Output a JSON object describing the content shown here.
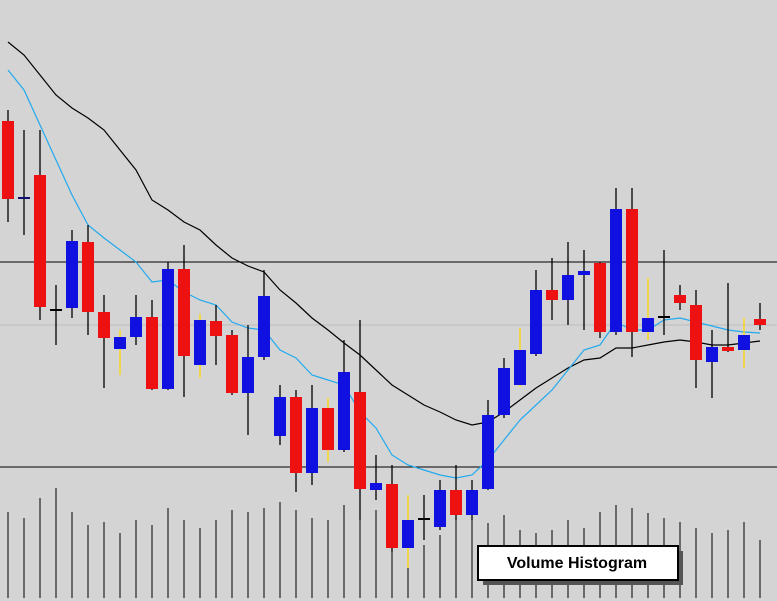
{
  "chart_data": [
    {
      "type": "candlestick",
      "ylim": [
        0,
        601
      ],
      "open": [
        480,
        403,
        426,
        292,
        293,
        359,
        289,
        252,
        264,
        284,
        212,
        332,
        236,
        280,
        266,
        208,
        244,
        165,
        204,
        128,
        193,
        151,
        209,
        111,
        117,
        53,
        83,
        74,
        111,
        86,
        112,
        186,
        216,
        247,
        311,
        301,
        326,
        338,
        269,
        392,
        269,
        285,
        306,
        296,
        239,
        254,
        251,
        282
      ],
      "high": [
        491,
        471,
        471,
        316,
        371,
        376,
        306,
        271,
        306,
        301,
        339,
        356,
        287,
        296,
        271,
        276,
        331,
        216,
        211,
        216,
        203,
        261,
        281,
        146,
        136,
        106,
        106,
        121,
        136,
        121,
        201,
        243,
        273,
        331,
        343,
        359,
        351,
        339,
        413,
        413,
        323,
        351,
        316,
        311,
        271,
        318,
        283,
        298
      ],
      "low": [
        379,
        366,
        281,
        256,
        283,
        266,
        213,
        226,
        256,
        211,
        211,
        204,
        223,
        236,
        206,
        166,
        241,
        156,
        109,
        116,
        139,
        149,
        81,
        101,
        49,
        33,
        61,
        71,
        81,
        81,
        111,
        183,
        214,
        245,
        281,
        276,
        271,
        263,
        266,
        244,
        261,
        266,
        291,
        213,
        203,
        249,
        233,
        271
      ],
      "close": [
        402,
        404,
        294,
        292,
        360,
        289,
        263,
        264,
        284,
        212,
        332,
        245,
        281,
        265,
        208,
        244,
        305,
        204,
        128,
        193,
        151,
        229,
        112,
        118,
        53,
        81,
        83,
        111,
        86,
        111,
        186,
        233,
        251,
        311,
        301,
        326,
        330,
        269,
        392,
        269,
        283,
        285,
        298,
        241,
        254,
        250,
        266,
        276
      ],
      "colors": [
        "#ee1111",
        "#10106e",
        "#ee1111",
        "#000000",
        "#1010e0",
        "#ee1111",
        "#ee1111",
        "#1010e0",
        "#1010e0",
        "#ee1111",
        "#1010e0",
        "#ee1111",
        "#1010e0",
        "#ee1111",
        "#ee1111",
        "#1010e0",
        "#1010e0",
        "#1010e0",
        "#ee1111",
        "#1010e0",
        "#ee1111",
        "#1010e0",
        "#ee1111",
        "#1010e0",
        "#ee1111",
        "#1010e0",
        "#000000",
        "#1010e0",
        "#ee1111",
        "#1010e0",
        "#1010e0",
        "#1010e0",
        "#1010e0",
        "#1010e0",
        "#ee1111",
        "#1010e0",
        "#1010e0",
        "#ee1111",
        "#1010e0",
        "#ee1111",
        "#1010e0",
        "#000000",
        "#ee1111",
        "#ee1111",
        "#1010e0",
        "#ee1111",
        "#1010e0",
        "#ee1111"
      ],
      "wick_colors": [
        "#000000",
        "#000000",
        "#000000",
        "#000000",
        "#000000",
        "#000000",
        "#000000",
        "#ffd700",
        "#000000",
        "#000000",
        "#000000",
        "#000000",
        "#ffd700",
        "#000000",
        "#000000",
        "#000000",
        "#000000",
        "#000000",
        "#000000",
        "#000000",
        "#ffd700",
        "#000000",
        "#000000",
        "#000000",
        "#000000",
        "#ffd700",
        "#000000",
        "#000000",
        "#000000",
        "#000000",
        "#000000",
        "#000000",
        "#ffd700",
        "#000000",
        "#000000",
        "#000000",
        "#000000",
        "#000000",
        "#000000",
        "#000000",
        "#ffd700",
        "#000000",
        "#000000",
        "#000000",
        "#000000",
        "#000000",
        "#ffd700",
        "#000000"
      ],
      "series": [
        {
          "color": "#000000",
          "values": [
            559,
            546,
            526,
            506,
            493,
            483,
            471,
            451,
            431,
            401,
            391,
            379,
            371,
            356,
            343,
            335,
            329,
            311,
            298,
            283,
            271,
            258,
            246,
            231,
            216,
            206,
            196,
            189,
            181,
            176,
            179,
            189,
            201,
            213,
            223,
            233,
            241,
            243,
            253,
            253,
            256,
            259,
            261,
            259,
            256,
            256,
            258,
            260
          ]
        },
        {
          "color": "#22aaee",
          "values": [
            531,
            511,
            476,
            441,
            406,
            376,
            363,
            351,
            339,
            319,
            321,
            309,
            301,
            296,
            279,
            273,
            271,
            251,
            243,
            226,
            221,
            216,
            189,
            173,
            146,
            136,
            131,
            126,
            123,
            126,
            141,
            161,
            181,
            196,
            211,
            231,
            251,
            256,
            279,
            271,
            271,
            281,
            283,
            279,
            275,
            271,
            269,
            268
          ]
        }
      ],
      "hlines": [
        {
          "value": 339,
          "color": "#000000"
        },
        {
          "value": 276,
          "color": "#bbbbbb"
        },
        {
          "value": 134,
          "color": "#000000"
        }
      ]
    },
    {
      "type": "volume",
      "title": "Volume Histogram",
      "ylim": [
        0,
        598
      ],
      "color": "#000000",
      "values": [
        86,
        80,
        100,
        110,
        86,
        73,
        76,
        65,
        78,
        73,
        90,
        78,
        70,
        78,
        88,
        86,
        90,
        96,
        88,
        80,
        78,
        93,
        105,
        88,
        70,
        58,
        53,
        63,
        83,
        78,
        75,
        83,
        68,
        65,
        68,
        78,
        70,
        86,
        93,
        90,
        85,
        80,
        76,
        70,
        65,
        68,
        76,
        58
      ]
    }
  ]
}
